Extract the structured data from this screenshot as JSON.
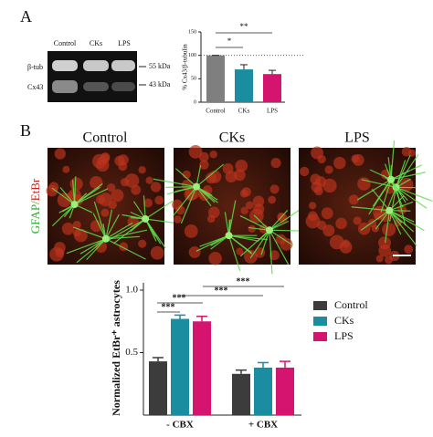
{
  "panels": {
    "a": "A",
    "b": "B"
  },
  "blot": {
    "lanes": [
      "Control",
      "CKs",
      "LPS"
    ],
    "rows": [
      "β-tub",
      "Cx43"
    ],
    "markers": [
      "55 kDa",
      "43 kDa"
    ]
  },
  "images": {
    "columns": [
      "Control",
      "CKs",
      "LPS"
    ],
    "stain_green": "GFAP/",
    "stain_red": "EtBr"
  },
  "chart_data": [
    {
      "type": "bar",
      "y_label": "% Cx43/β-tubulin",
      "categories": [
        "Control",
        "CKs",
        "LPS"
      ],
      "values": [
        100,
        70,
        60
      ],
      "errors": [
        0,
        10,
        8
      ],
      "colors": [
        "#7f7f7f",
        "#1a8ea0",
        "#d4146f"
      ],
      "ylim": [
        0,
        150
      ],
      "yticks": [
        0,
        50,
        100,
        150
      ],
      "annotations": [
        "*",
        "**"
      ]
    },
    {
      "type": "grouped-bar",
      "y_label": "Normalized EtBr⁺ astrocytes",
      "categories": [
        "- CBX",
        "+ CBX"
      ],
      "series": [
        {
          "name": "Control",
          "color": "#3c3c3c",
          "values": [
            0.43,
            0.33
          ],
          "errors": [
            0.03,
            0.03
          ]
        },
        {
          "name": "CKs",
          "color": "#1a8ea0",
          "values": [
            0.77,
            0.38
          ],
          "errors": [
            0.03,
            0.04
          ]
        },
        {
          "name": "LPS",
          "color": "#d4146f",
          "values": [
            0.75,
            0.38
          ],
          "errors": [
            0.04,
            0.05
          ]
        }
      ],
      "ylim": [
        0,
        1.0
      ],
      "yticks": [
        {
          "value": 0.5,
          "label": "0.5"
        },
        {
          "value": 1.0,
          "label": "1.0"
        }
      ],
      "annotations": [
        "***",
        "***",
        "***",
        "***"
      ]
    }
  ]
}
